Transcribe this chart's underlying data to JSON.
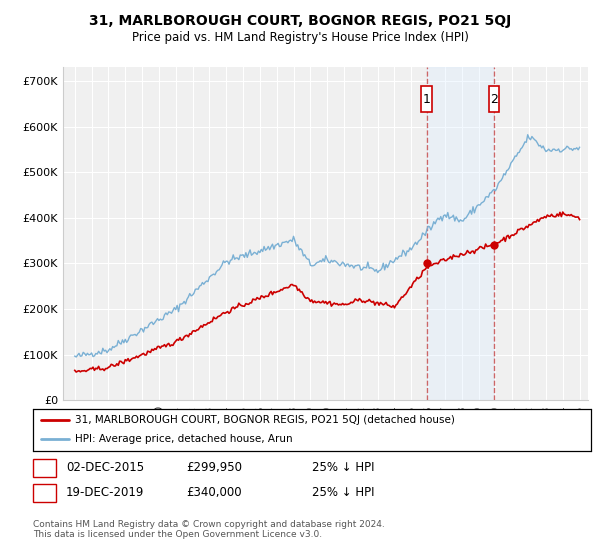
{
  "title": "31, MARLBOROUGH COURT, BOGNOR REGIS, PO21 5QJ",
  "subtitle": "Price paid vs. HM Land Registry's House Price Index (HPI)",
  "ylabel_ticks": [
    "£0",
    "£100K",
    "£200K",
    "£300K",
    "£400K",
    "£500K",
    "£600K",
    "£700K"
  ],
  "ytick_values": [
    0,
    100000,
    200000,
    300000,
    400000,
    500000,
    600000,
    700000
  ],
  "ylim": [
    0,
    730000
  ],
  "legend_line1": "31, MARLBOROUGH COURT, BOGNOR REGIS, PO21 5QJ (detached house)",
  "legend_line2": "HPI: Average price, detached house, Arun",
  "sale1_date": "02-DEC-2015",
  "sale1_price": "£299,950",
  "sale1_info": "25% ↓ HPI",
  "sale2_date": "19-DEC-2019",
  "sale2_price": "£340,000",
  "sale2_info": "25% ↓ HPI",
  "footer": "Contains HM Land Registry data © Crown copyright and database right 2024.\nThis data is licensed under the Open Government Licence v3.0.",
  "red_color": "#cc0000",
  "blue_color": "#7ab0d4",
  "sale_marker_color": "#cc0000",
  "dashed_line_color": "#cc6666",
  "span_color": "#ddeeff",
  "background_color": "#ffffff",
  "plot_bg_color": "#f0f0f0"
}
